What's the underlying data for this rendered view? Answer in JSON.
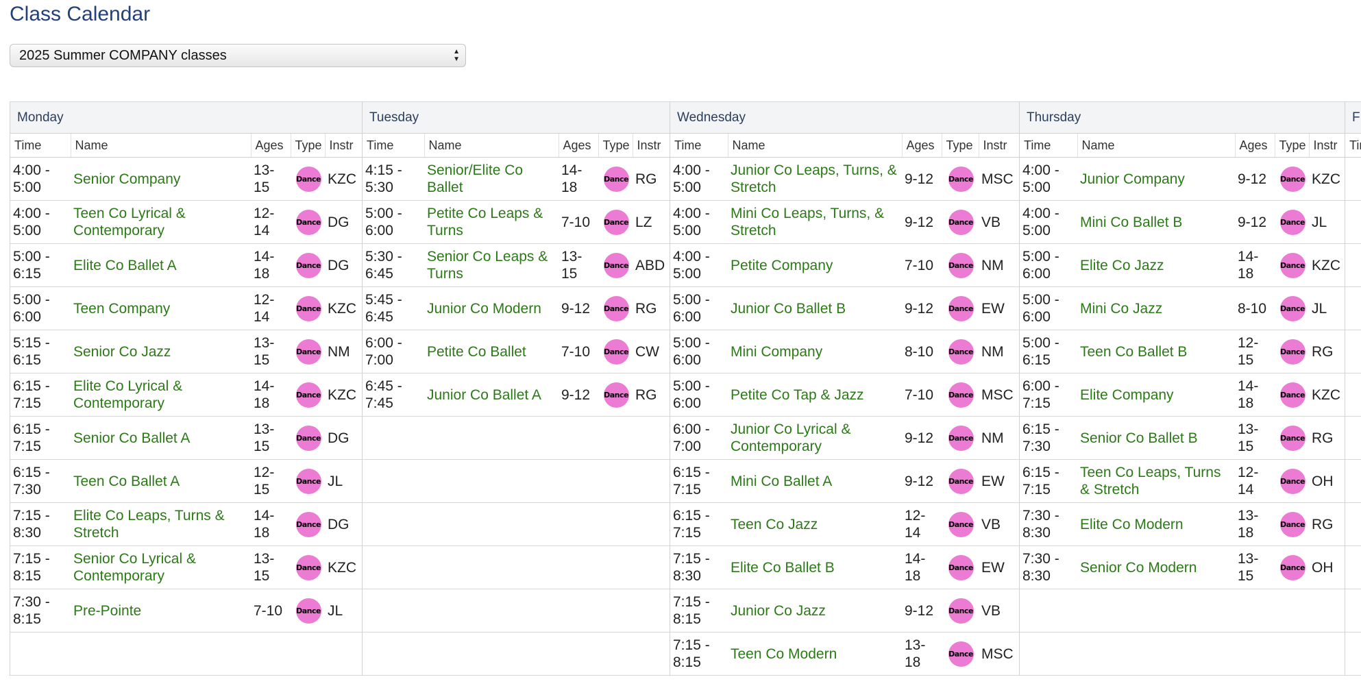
{
  "page": {
    "title": "Class Calendar"
  },
  "session_select": {
    "value": "2025 Summer COMPANY classes"
  },
  "columns": {
    "time": "Time",
    "name": "Name",
    "ages": "Ages",
    "type": "Type",
    "instr": "Instr"
  },
  "type_badge_label": "Dance",
  "colors": {
    "title": "#23407a",
    "class_link": "#2c7a17",
    "badge": "#ec7cd3",
    "day_header_bg": "#f3f4f6"
  },
  "days": [
    {
      "name": "Monday",
      "rows": [
        {
          "time": "4:00 - 5:00",
          "name": "Senior Company",
          "ages": "13-15",
          "instr": "KZC"
        },
        {
          "time": "4:00 - 5:00",
          "name": "Teen Co Lyrical & Contemporary",
          "ages": "12-14",
          "instr": "DG"
        },
        {
          "time": "5:00 - 6:15",
          "name": "Elite Co Ballet A",
          "ages": "14-18",
          "instr": "DG"
        },
        {
          "time": "5:00 - 6:00",
          "name": "Teen Company",
          "ages": "12-14",
          "instr": "KZC"
        },
        {
          "time": "5:15 - 6:15",
          "name": "Senior Co Jazz",
          "ages": "13-15",
          "instr": "NM"
        },
        {
          "time": "6:15 - 7:15",
          "name": "Elite Co Lyrical & Contemporary",
          "ages": "14-18",
          "instr": "KZC"
        },
        {
          "time": "6:15 - 7:15",
          "name": "Senior Co Ballet A",
          "ages": "13-15",
          "instr": "DG"
        },
        {
          "time": "6:15 - 7:30",
          "name": "Teen Co Ballet A",
          "ages": "12-15",
          "instr": "JL"
        },
        {
          "time": "7:15 - 8:30",
          "name": "Elite Co Leaps, Turns & Stretch",
          "ages": "14-18",
          "instr": "DG"
        },
        {
          "time": "7:15 - 8:15",
          "name": "Senior Co Lyrical & Contemporary",
          "ages": "13-15",
          "instr": "KZC"
        },
        {
          "time": "7:30 - 8:15",
          "name": "Pre-Pointe",
          "ages": "7-10",
          "instr": "JL"
        }
      ]
    },
    {
      "name": "Tuesday",
      "rows": [
        {
          "time": "4:15 - 5:30",
          "name": "Senior/Elite Co Ballet",
          "ages": "14-18",
          "instr": "RG"
        },
        {
          "time": "5:00 - 6:00",
          "name": "Petite Co Leaps & Turns",
          "ages": "7-10",
          "instr": "LZ"
        },
        {
          "time": "5:30 - 6:45",
          "name": "Senior Co Leaps & Turns",
          "ages": "13-15",
          "instr": "ABD"
        },
        {
          "time": "5:45 - 6:45",
          "name": "Junior Co Modern",
          "ages": "9-12",
          "instr": "RG"
        },
        {
          "time": "6:00 - 7:00",
          "name": "Petite Co Ballet",
          "ages": "7-10",
          "instr": "CW"
        },
        {
          "time": "6:45 - 7:45",
          "name": "Junior Co Ballet A",
          "ages": "9-12",
          "instr": "RG"
        }
      ]
    },
    {
      "name": "Wednesday",
      "rows": [
        {
          "time": "4:00 - 5:00",
          "name": "Junior Co Leaps, Turns, & Stretch",
          "ages": "9-12",
          "instr": "MSC"
        },
        {
          "time": "4:00 - 5:00",
          "name": "Mini Co Leaps, Turns, & Stretch",
          "ages": "9-12",
          "instr": "VB"
        },
        {
          "time": "4:00 - 5:00",
          "name": "Petite Company",
          "ages": "7-10",
          "instr": "NM"
        },
        {
          "time": "5:00 - 6:00",
          "name": "Junior Co Ballet B",
          "ages": "9-12",
          "instr": "EW"
        },
        {
          "time": "5:00 - 6:00",
          "name": "Mini Company",
          "ages": "8-10",
          "instr": "NM"
        },
        {
          "time": "5:00 - 6:00",
          "name": "Petite Co Tap & Jazz",
          "ages": "7-10",
          "instr": "MSC"
        },
        {
          "time": "6:00 - 7:00",
          "name": "Junior Co Lyrical & Contemporary",
          "ages": "9-12",
          "instr": "NM"
        },
        {
          "time": "6:15 - 7:15",
          "name": "Mini Co Ballet A",
          "ages": "9-12",
          "instr": "EW"
        },
        {
          "time": "6:15 - 7:15",
          "name": "Teen Co Jazz",
          "ages": "12-14",
          "instr": "VB"
        },
        {
          "time": "7:15 - 8:30",
          "name": "Elite Co Ballet B",
          "ages": "14-18",
          "instr": "EW"
        },
        {
          "time": "7:15 - 8:15",
          "name": "Junior Co Jazz",
          "ages": "9-12",
          "instr": "VB"
        },
        {
          "time": "7:15 - 8:15",
          "name": "Teen Co Modern",
          "ages": "13-18",
          "instr": "MSC"
        }
      ]
    },
    {
      "name": "Thursday",
      "rows": [
        {
          "time": "4:00 - 5:00",
          "name": "Junior Company",
          "ages": "9-12",
          "instr": "KZC"
        },
        {
          "time": "4:00 - 5:00",
          "name": "Mini Co Ballet B",
          "ages": "9-12",
          "instr": "JL"
        },
        {
          "time": "5:00 - 6:00",
          "name": "Elite Co Jazz",
          "ages": "14-18",
          "instr": "KZC"
        },
        {
          "time": "5:00 - 6:00",
          "name": "Mini Co Jazz",
          "ages": "8-10",
          "instr": "JL"
        },
        {
          "time": "5:00 - 6:15",
          "name": "Teen Co Ballet B",
          "ages": "12-15",
          "instr": "RG"
        },
        {
          "time": "6:00 - 7:15",
          "name": "Elite Company",
          "ages": "14-18",
          "instr": "KZC"
        },
        {
          "time": "6:15 - 7:30",
          "name": "Senior Co Ballet B",
          "ages": "13-15",
          "instr": "RG"
        },
        {
          "time": "6:15 - 7:15",
          "name": "Teen Co Leaps, Turns & Stretch",
          "ages": "12-14",
          "instr": "OH"
        },
        {
          "time": "7:30 - 8:30",
          "name": "Elite Co Modern",
          "ages": "13-18",
          "instr": "RG"
        },
        {
          "time": "7:30 - 8:30",
          "name": "Senior Co Modern",
          "ages": "13-15",
          "instr": "OH"
        }
      ]
    },
    {
      "name": "F",
      "rows": []
    }
  ]
}
